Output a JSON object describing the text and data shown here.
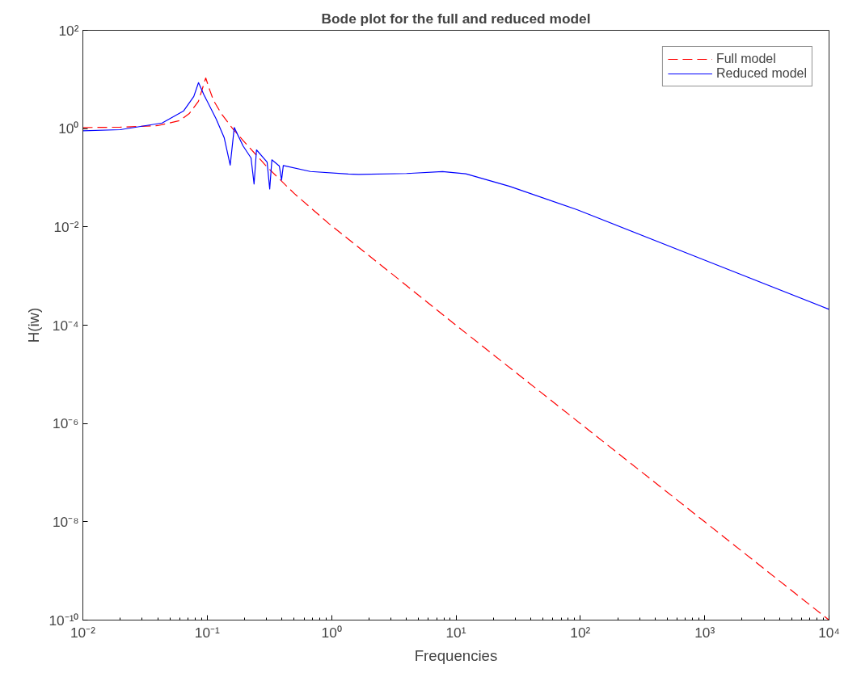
{
  "chart_data": {
    "type": "line",
    "title": "Bode plot for the full and reduced model",
    "xlabel": "Frequencies",
    "ylabel": "H(iw)",
    "log": "xy",
    "grid": false,
    "legend": "top right",
    "xlim": [
      0.01,
      10000
    ],
    "ylim": [
      1e-10,
      100
    ],
    "xticks": [
      {
        "value": 0.01,
        "label": "10⁻²"
      },
      {
        "value": 0.1,
        "label": "10⁻¹"
      },
      {
        "value": 1,
        "label": "10⁰"
      },
      {
        "value": 10,
        "label": "10¹"
      },
      {
        "value": 100,
        "label": "10²"
      },
      {
        "value": 1000,
        "label": "10³"
      },
      {
        "value": 10000,
        "label": "10⁴"
      }
    ],
    "yticks": [
      {
        "value": 1e-10,
        "label": "10⁻¹⁰"
      },
      {
        "value": 1e-08,
        "label": "10⁻⁸"
      },
      {
        "value": 1e-06,
        "label": "10⁻⁶"
      },
      {
        "value": 0.0001,
        "label": "10⁻⁴"
      },
      {
        "value": 0.01,
        "label": "10⁻²"
      },
      {
        "value": 1,
        "label": "10⁰"
      },
      {
        "value": 100,
        "label": "10²"
      }
    ],
    "series": [
      {
        "name": "Full model",
        "color": "#ff0000",
        "line_style": "dashed",
        "x": [
          0.01,
          0.02,
          0.04,
          0.06,
          0.0714,
          0.085,
          0.0973,
          0.105,
          0.112,
          0.13,
          0.16,
          0.194,
          0.3,
          0.5,
          0.957,
          3,
          10,
          100,
          1000,
          10000
        ],
        "values": [
          1.05,
          1.07,
          1.15,
          1.45,
          2.0,
          3.6,
          10.7,
          6.0,
          3.8,
          2.0,
          1.0,
          0.575,
          0.17,
          0.048,
          0.0115,
          0.00115,
          0.0001,
          1e-06,
          1e-08,
          1e-10
        ]
      },
      {
        "name": "Reduced model",
        "color": "#0000ff",
        "line_style": "solid",
        "x": [
          0.01,
          0.02,
          0.0434,
          0.0647,
          0.078,
          0.0851,
          0.094,
          0.118,
          0.137,
          0.153,
          0.165,
          0.194,
          0.225,
          0.238,
          0.249,
          0.303,
          0.318,
          0.331,
          0.38,
          0.396,
          0.409,
          0.674,
          1.36,
          1.64,
          4,
          7.8,
          12,
          27,
          94,
          1000,
          10000
        ],
        "values": [
          0.9,
          0.95,
          1.3,
          2.3,
          4.5,
          8.6,
          4.9,
          1.57,
          0.65,
          0.18,
          1.05,
          0.446,
          0.253,
          0.0745,
          0.369,
          0.209,
          0.059,
          0.232,
          0.173,
          0.0897,
          0.177,
          0.134,
          0.119,
          0.117,
          0.122,
          0.133,
          0.12,
          0.067,
          0.0224,
          0.0021,
          0.00021
        ]
      }
    ]
  }
}
